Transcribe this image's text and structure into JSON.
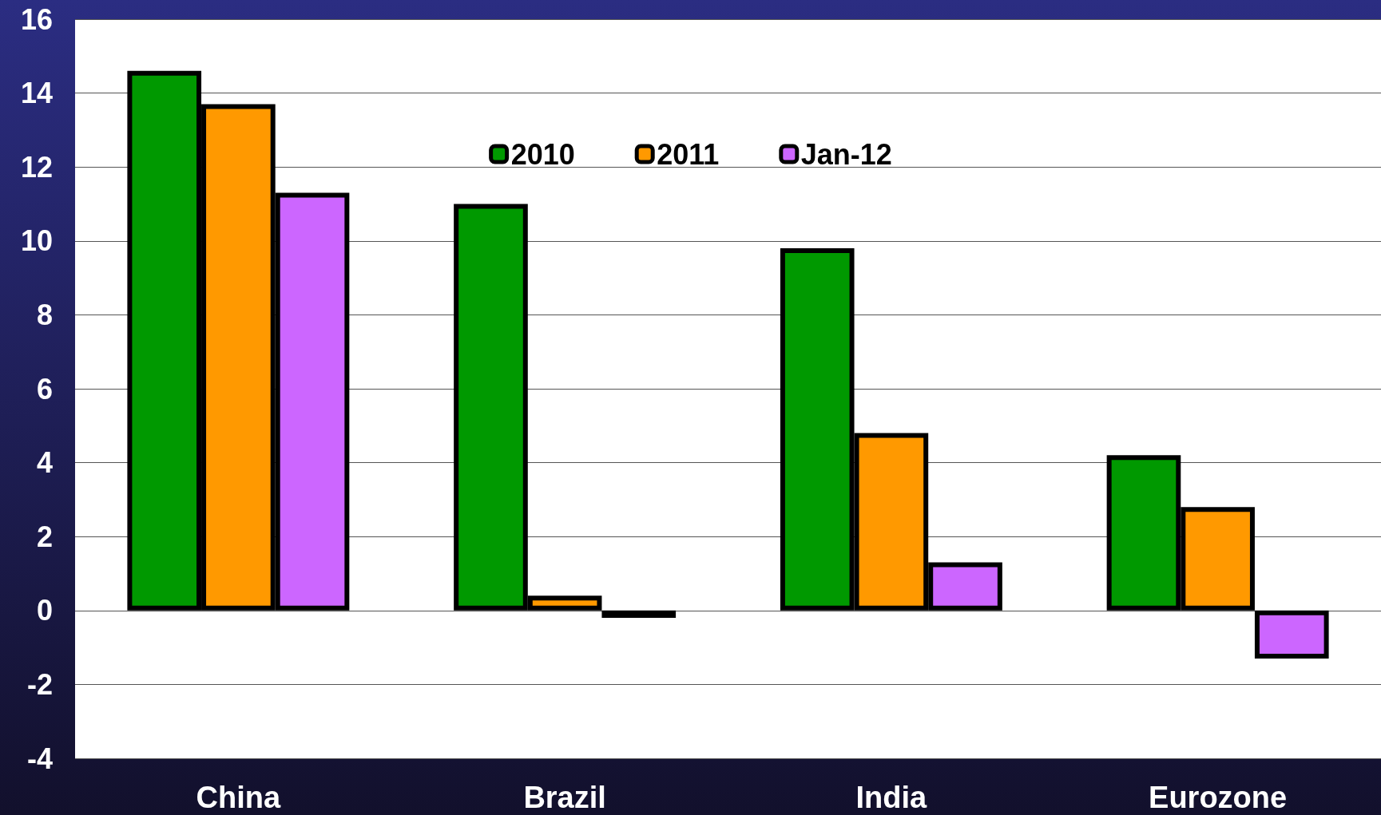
{
  "chart_data": {
    "type": "bar",
    "categories": [
      "China",
      "Brazil",
      "India",
      "Eurozone"
    ],
    "series": [
      {
        "name": "2010",
        "color": "#009900",
        "values": [
          14.6,
          11.0,
          9.8,
          4.2
        ]
      },
      {
        "name": "2011",
        "color": "#ff9900",
        "values": [
          13.7,
          0.4,
          4.8,
          2.8
        ]
      },
      {
        "name": "Jan-12",
        "color": "#cc66ff",
        "values": [
          11.3,
          -0.2,
          1.3,
          -1.3
        ]
      }
    ],
    "ylim": [
      -4,
      16
    ],
    "yticks": [
      -4,
      -2,
      0,
      2,
      4,
      6,
      8,
      10,
      12,
      14,
      16
    ],
    "grid": "y",
    "legend": "top"
  }
}
